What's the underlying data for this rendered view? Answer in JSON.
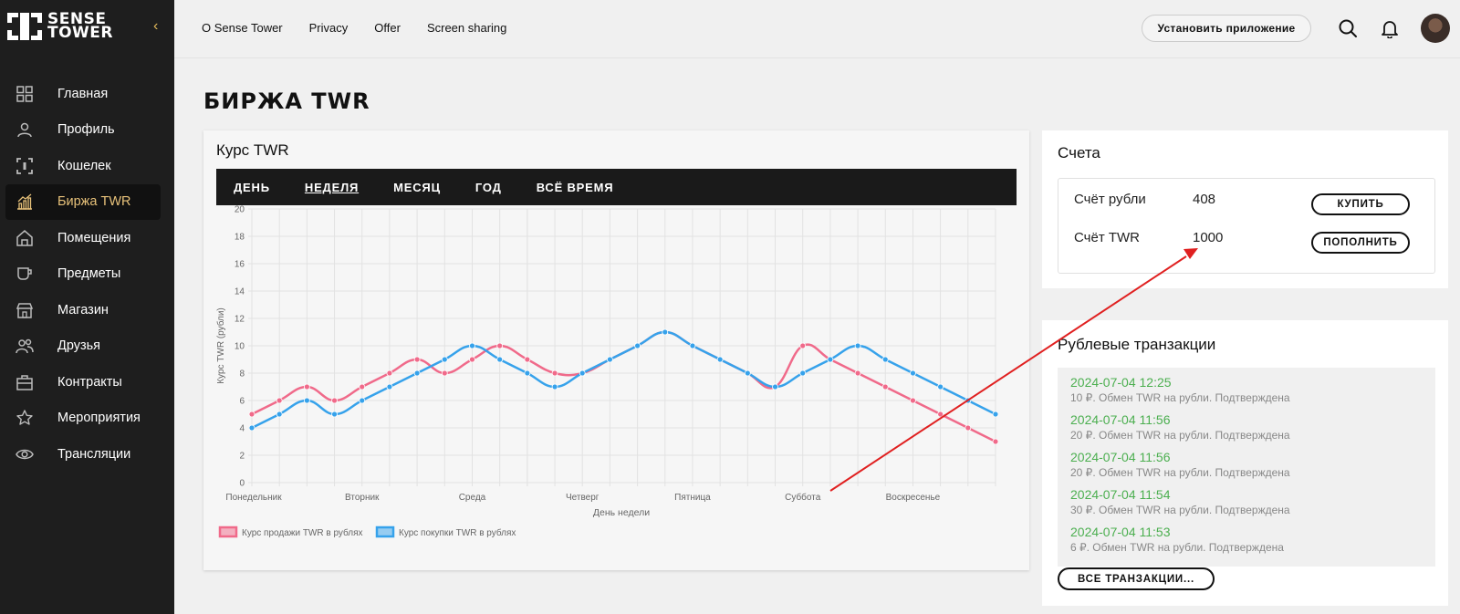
{
  "brand": {
    "line1": "SENSE",
    "line2": "TOWER"
  },
  "sidebar": {
    "items": [
      {
        "label": "Главная",
        "icon": "grid-icon",
        "active": false
      },
      {
        "label": "Профиль",
        "icon": "user-icon",
        "active": false
      },
      {
        "label": "Кошелек",
        "icon": "wallet-frame-icon",
        "active": false
      },
      {
        "label": "Биржа TWR",
        "icon": "chart-up-icon",
        "active": true
      },
      {
        "label": "Помещения",
        "icon": "home-icon",
        "active": false
      },
      {
        "label": "Предметы",
        "icon": "cup-icon",
        "active": false
      },
      {
        "label": "Магазин",
        "icon": "store-icon",
        "active": false
      },
      {
        "label": "Друзья",
        "icon": "friends-icon",
        "active": false
      },
      {
        "label": "Контракты",
        "icon": "briefcase-icon",
        "active": false
      },
      {
        "label": "Мероприятия",
        "icon": "star-icon",
        "active": false
      },
      {
        "label": "Трансляции",
        "icon": "eye-icon",
        "active": false
      }
    ]
  },
  "topbar": {
    "links": [
      "O Sense Tower",
      "Privacy",
      "Offer",
      "Screen sharing"
    ],
    "install_label": "Установить приложение"
  },
  "page": {
    "title": "БИРЖА TWR"
  },
  "chart_card": {
    "title": "Курс TWR",
    "periods": [
      "ДЕНЬ",
      "НЕДЕЛЯ",
      "МЕСЯЦ",
      "ГОД",
      "ВСЁ ВРЕМЯ"
    ],
    "active_period": "НЕДЕЛЯ"
  },
  "chart_data": {
    "type": "line",
    "xlabel": "День недели",
    "ylabel": "Курс TWR (рубли)",
    "ylim": [
      0,
      20
    ],
    "yticks": [
      0,
      2,
      4,
      6,
      8,
      10,
      12,
      14,
      16,
      18,
      20
    ],
    "x_tick_labels": [
      "Понедельник",
      "Вторник",
      "Среда",
      "Четверг",
      "Пятница",
      "Суббота",
      "Воскресенье"
    ],
    "grid": true,
    "legend_position": "bottom-left",
    "series": [
      {
        "name": "Курс продажи TWR в рублях",
        "color": "#f06a8a",
        "values": [
          5,
          6,
          7,
          6,
          7,
          8,
          9,
          8,
          9,
          10,
          9,
          8,
          8,
          9,
          10,
          11,
          10,
          9,
          8,
          7,
          10,
          9,
          8,
          7,
          6,
          5,
          4,
          3
        ]
      },
      {
        "name": "Курс покупки TWR в рублях",
        "color": "#36a2eb",
        "values": [
          4,
          5,
          6,
          5,
          6,
          7,
          8,
          9,
          10,
          9,
          8,
          7,
          8,
          9,
          10,
          11,
          10,
          9,
          8,
          7,
          8,
          9,
          10,
          9,
          8,
          7,
          6,
          5
        ]
      }
    ]
  },
  "accounts": {
    "title": "Счета",
    "rows": [
      {
        "label": "Счёт рубли",
        "value": "408",
        "button": "КУПИТЬ"
      },
      {
        "label": "Счёт TWR",
        "value": "1000",
        "button": "ПОПОЛНИТЬ"
      }
    ]
  },
  "transactions": {
    "title": "Рублевые транзакции",
    "items": [
      {
        "date": "2024-07-04 12:25",
        "desc": "10 ₽. Обмен TWR на рубли. Подтверждена"
      },
      {
        "date": "2024-07-04 11:56",
        "desc": "20 ₽. Обмен TWR на рубли. Подтверждена"
      },
      {
        "date": "2024-07-04 11:56",
        "desc": "20 ₽. Обмен TWR на рубли. Подтверждена"
      },
      {
        "date": "2024-07-04 11:54",
        "desc": "30 ₽. Обмен TWR на рубли. Подтверждена"
      },
      {
        "date": "2024-07-04 11:53",
        "desc": "6 ₽. Обмен TWR на рубли. Подтверждена"
      }
    ],
    "all_label": "ВСЕ ТРАНЗАКЦИИ..."
  },
  "colors": {
    "sidebar_bg": "#1e1e1e",
    "accent": "#e8c27a",
    "success": "#4caf50",
    "annotation": "#e02020"
  }
}
